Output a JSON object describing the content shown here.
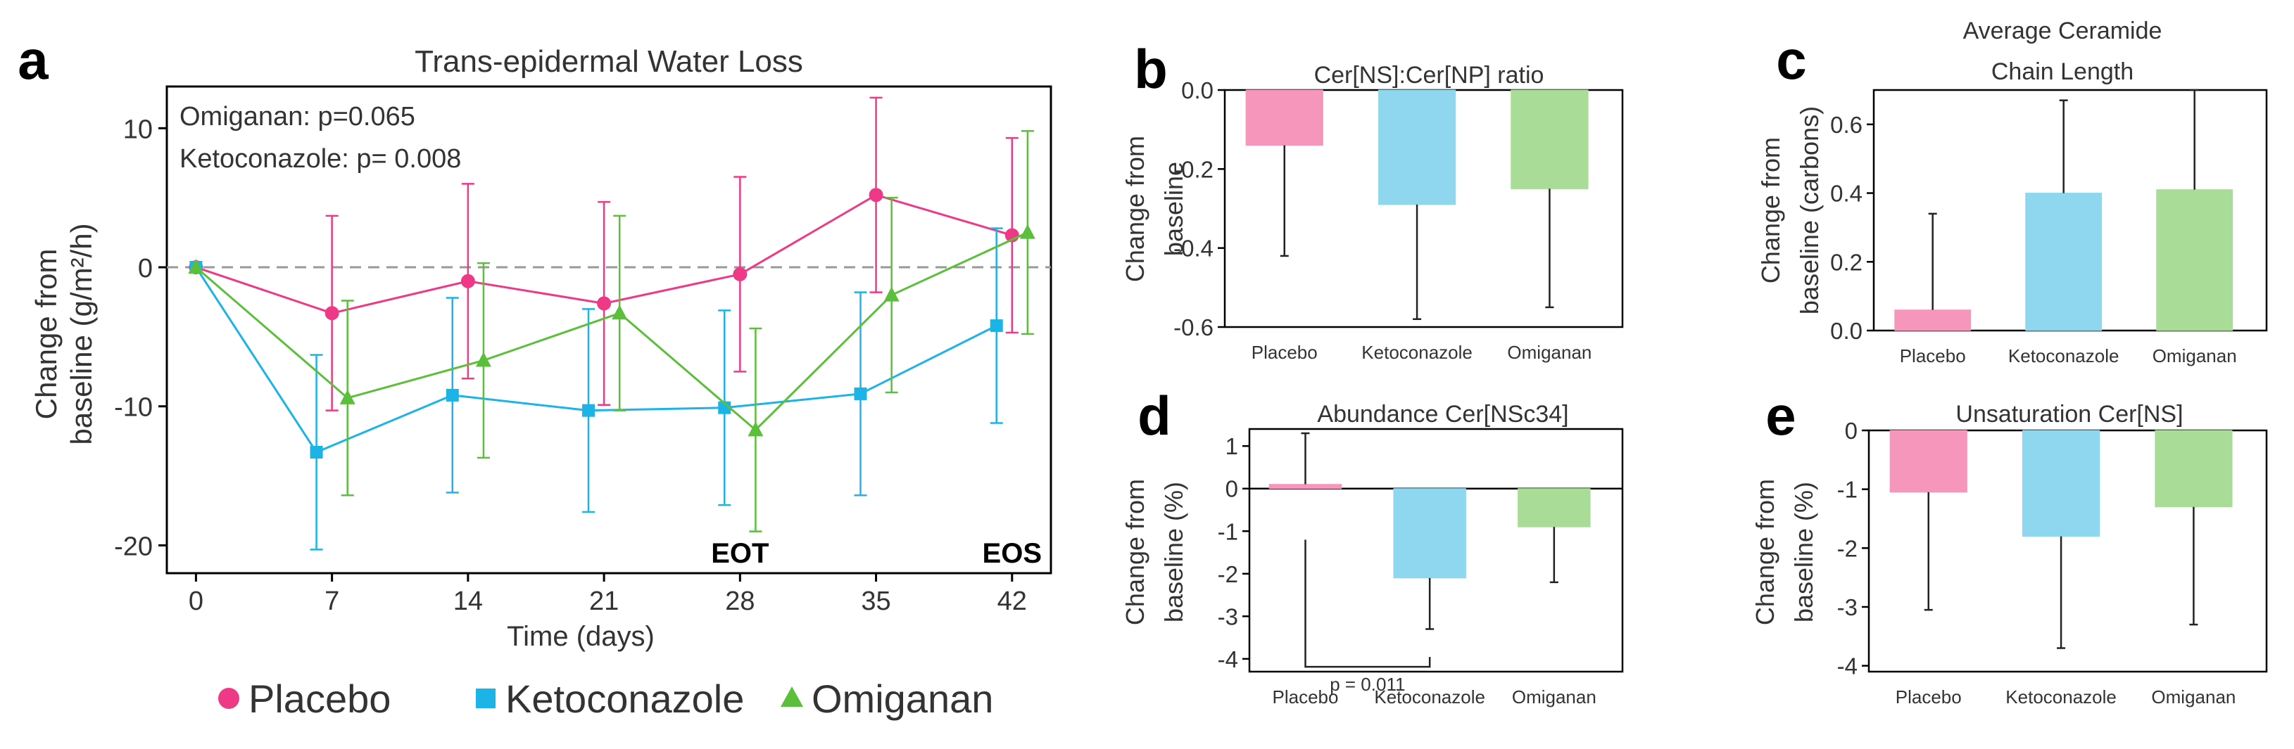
{
  "colors": {
    "placebo": "#ee3a86",
    "ketoconazole": "#1cb3e6",
    "omiganan": "#5cbf3b",
    "placebo_bar": "#f796bb",
    "ketoconazole_bar": "#8fd6ef",
    "omiganan_bar": "#a9dc96",
    "axis": "#000000",
    "text": "#333333",
    "zero_line": "#999999"
  },
  "legend": {
    "items": [
      {
        "label": "Placebo",
        "color": "#ee3a86",
        "marker": "circle"
      },
      {
        "label": "Ketoconazole",
        "color": "#1cb3e6",
        "marker": "square"
      },
      {
        "label": "Omiganan",
        "color": "#5cbf3b",
        "marker": "triangle"
      }
    ]
  },
  "chart_data": [
    {
      "id": "a",
      "panel_label": "a",
      "type": "line",
      "title": "Trans-epidermal Water Loss",
      "xlabel": "Time (days)",
      "ylabel_lines": [
        "Change from",
        "baseline (g/m²/h)"
      ],
      "x": [
        0,
        7,
        14,
        21,
        28,
        35,
        42
      ],
      "xlim": [
        -1.5,
        44
      ],
      "ylim": [
        -22,
        13
      ],
      "xticks": [
        0,
        7,
        14,
        21,
        28,
        35,
        42
      ],
      "yticks": [
        10,
        0,
        -10,
        -20
      ],
      "zero_line": true,
      "annotations": [
        "Omiganan: p=0.065",
        "Ketoconazole: p= 0.008"
      ],
      "markers": [
        {
          "text": "EOT",
          "x": 28
        },
        {
          "text": "EOS",
          "x": 42
        }
      ],
      "series": [
        {
          "name": "Placebo",
          "key": "placebo",
          "marker": "circle",
          "dx": 0,
          "values": [
            0,
            -3.3,
            -1,
            -2.6,
            -0.5,
            5.2,
            2.3
          ],
          "err": [
            0,
            7.0,
            7.0,
            7.3,
            7.0,
            7.0,
            7.0
          ]
        },
        {
          "name": "Ketoconazole",
          "key": "ketoconazole",
          "marker": "square",
          "dx": -0.8,
          "values": [
            0,
            -13.3,
            -9.2,
            -10.3,
            -10.1,
            -9.1,
            -4.2
          ],
          "err": [
            0,
            7.0,
            7.0,
            7.3,
            7.0,
            7.3,
            7.0
          ]
        },
        {
          "name": "Omiganan",
          "key": "omiganan",
          "marker": "triangle",
          "dx": 0.8,
          "values": [
            0,
            -9.4,
            -6.7,
            -3.3,
            -11.7,
            -2,
            2.5
          ],
          "err": [
            0,
            7.0,
            7.0,
            7.0,
            7.3,
            7.0,
            7.3
          ]
        }
      ]
    },
    {
      "id": "b",
      "panel_label": "b",
      "type": "bar",
      "title": "Cer[NS]:Cer[NP] ratio",
      "ylabel_lines": [
        "Change from",
        "baseline"
      ],
      "categories": [
        "Placebo",
        "Ketoconazole",
        "Omiganan"
      ],
      "values": [
        -0.14,
        -0.29,
        -0.25
      ],
      "err": [
        0.28,
        0.29,
        0.3
      ],
      "ylim": [
        -0.6,
        0.0
      ],
      "yticks": [
        0.0,
        -0.2,
        -0.4,
        -0.6
      ],
      "ytick_labels": [
        "0.0",
        "-0.2",
        "-0.4",
        "-0.6"
      ]
    },
    {
      "id": "c",
      "panel_label": "c",
      "type": "bar",
      "title_lines": [
        "Average Ceramide",
        "Chain Length"
      ],
      "ylabel_lines": [
        "Change from",
        "baseline (carbons)"
      ],
      "categories": [
        "Placebo",
        "Ketoconazole",
        "Omiganan"
      ],
      "values": [
        0.06,
        0.4,
        0.41
      ],
      "err": [
        0.28,
        0.27,
        0.29
      ],
      "ylim": [
        0,
        0.7
      ],
      "yticks": [
        0.0,
        0.2,
        0.4,
        0.6
      ],
      "ytick_labels": [
        "0.0",
        "0.2",
        "0.4",
        "0.6"
      ]
    },
    {
      "id": "d",
      "panel_label": "d",
      "type": "bar",
      "title": "Abundance Cer[NSc34]",
      "ylabel_lines": [
        "Change from",
        "baseline (%)"
      ],
      "categories": [
        "Placebo",
        "Ketoconazole",
        "Omiganan"
      ],
      "values": [
        0.1,
        -2.1,
        -0.9
      ],
      "err": [
        1.2,
        1.2,
        1.3
      ],
      "ylim": [
        -4.3,
        1.4
      ],
      "yticks": [
        1,
        0,
        -1,
        -2,
        -3,
        -4
      ],
      "ytick_labels": [
        "1",
        "0",
        "-1",
        "-2",
        "-3",
        "-4"
      ],
      "significance": {
        "text": "p = 0.011",
        "from": 0,
        "to": 1,
        "level": -2.7
      }
    },
    {
      "id": "e",
      "panel_label": "e",
      "type": "bar",
      "title": "Unsaturation Cer[NS]",
      "ylabel_lines": [
        "Change from",
        "baseline (%)"
      ],
      "categories": [
        "Placebo",
        "Ketoconazole",
        "Omiganan"
      ],
      "values": [
        -1.05,
        -1.8,
        -1.3
      ],
      "err": [
        2.0,
        1.9,
        2.0
      ],
      "ylim": [
        -4.1,
        0
      ],
      "yticks": [
        0,
        -1,
        -2,
        -3,
        -4
      ],
      "ytick_labels": [
        "0",
        "-1",
        "-2",
        "-3",
        "-4"
      ]
    }
  ]
}
